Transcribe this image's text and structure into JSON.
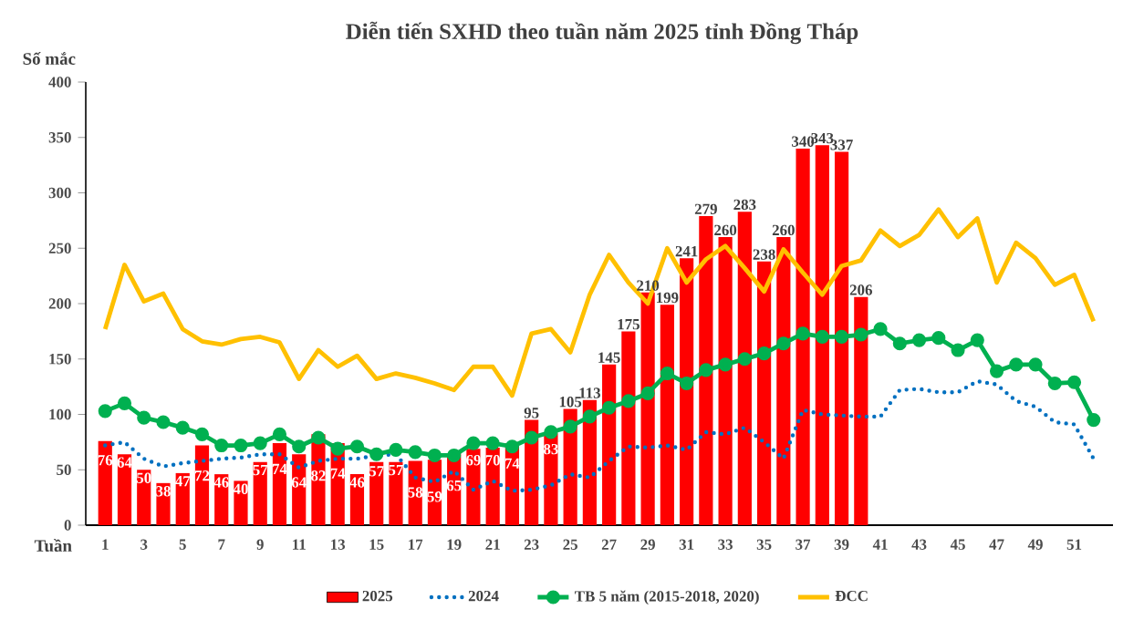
{
  "chart_data": {
    "type": "bar",
    "title": "Diễn tiến SXHD theo tuần năm 2025 tỉnh Đồng Tháp",
    "ylabel": "Số mắc",
    "xlabel": "Tuần",
    "x": [
      1,
      2,
      3,
      4,
      5,
      6,
      7,
      8,
      9,
      10,
      11,
      12,
      13,
      14,
      15,
      16,
      17,
      18,
      19,
      20,
      21,
      22,
      23,
      24,
      25,
      26,
      27,
      28,
      29,
      30,
      31,
      32,
      33,
      34,
      35,
      36,
      37,
      38,
      39,
      40,
      41,
      42,
      43,
      44,
      45,
      46,
      47,
      48,
      49,
      50,
      51,
      52
    ],
    "xlim": [
      0,
      53
    ],
    "xticks": [
      1,
      3,
      5,
      7,
      9,
      11,
      13,
      15,
      17,
      19,
      21,
      23,
      25,
      27,
      29,
      31,
      33,
      35,
      37,
      39,
      41,
      43,
      45,
      47,
      49,
      51
    ],
    "ylim": [
      0,
      400
    ],
    "yticks": [
      0,
      50,
      100,
      150,
      200,
      250,
      300,
      350,
      400
    ],
    "legend": "bottom",
    "series": [
      {
        "name": "2025",
        "color": "#ff0000",
        "data_labels": true,
        "values": [
          76,
          64,
          50,
          38,
          47,
          72,
          46,
          40,
          57,
          74,
          64,
          82,
          74,
          46,
          57,
          57,
          58,
          59,
          65,
          69,
          70,
          74,
          95,
          83,
          105,
          113,
          145,
          175,
          210,
          199,
          241,
          279,
          260,
          283,
          238,
          260,
          340,
          343,
          337,
          206,
          null,
          null,
          null,
          null,
          null,
          null,
          null,
          null,
          null,
          null,
          null,
          null
        ]
      },
      {
        "name": "2024",
        "type": "line",
        "color": "#0070c0",
        "line_style": "dotted",
        "marker": "none",
        "values": [
          72,
          75,
          60,
          53,
          56,
          58,
          60,
          61,
          64,
          64,
          52,
          58,
          60,
          60,
          63,
          64,
          43,
          39,
          49,
          32,
          40,
          31,
          32,
          36,
          46,
          43,
          58,
          71,
          70,
          72,
          68,
          84,
          82,
          88,
          75,
          60,
          104,
          100,
          99,
          98,
          98,
          122,
          123,
          120,
          120,
          130,
          127,
          112,
          107,
          93,
          91,
          60
        ]
      },
      {
        "name": "TB 5 năm (2015-2018, 2020)",
        "type": "line",
        "color": "#00b050",
        "line_style": "solid",
        "marker": "circle",
        "values": [
          103,
          110,
          97,
          93,
          88,
          82,
          72,
          72,
          74,
          82,
          71,
          79,
          69,
          71,
          64,
          68,
          66,
          63,
          63,
          74,
          74,
          71,
          79,
          84,
          89,
          98,
          106,
          112,
          119,
          137,
          128,
          140,
          145,
          150,
          155,
          164,
          173,
          170,
          170,
          172,
          177,
          164,
          167,
          169,
          158,
          167,
          139,
          145,
          145,
          128,
          129,
          95
        ]
      },
      {
        "name": "ĐCC",
        "type": "line",
        "color": "#ffc000",
        "line_style": "solid",
        "marker": "none",
        "values": [
          177,
          235,
          202,
          209,
          177,
          166,
          163,
          168,
          170,
          165,
          132,
          158,
          143,
          153,
          132,
          137,
          133,
          128,
          122,
          143,
          143,
          117,
          173,
          177,
          156,
          208,
          244,
          219,
          200,
          250,
          219,
          240,
          252,
          232,
          211,
          249,
          228,
          208,
          234,
          239,
          266,
          252,
          262,
          285,
          260,
          277,
          219,
          255,
          241,
          217,
          226,
          184
        ]
      }
    ]
  }
}
